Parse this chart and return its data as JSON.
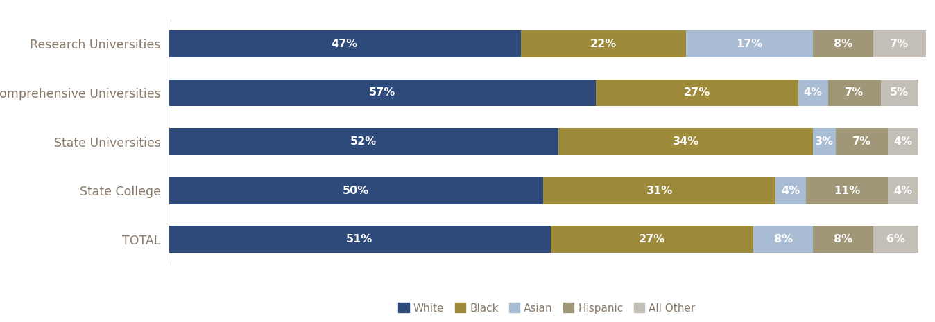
{
  "categories": [
    "Research Universities",
    "Comprehensive Universities",
    "State Universities",
    "State College",
    "TOTAL"
  ],
  "series": {
    "White": [
      47,
      57,
      52,
      50,
      51
    ],
    "Black": [
      22,
      27,
      34,
      31,
      27
    ],
    "Asian": [
      17,
      4,
      3,
      4,
      8
    ],
    "Hispanic": [
      8,
      7,
      7,
      11,
      8
    ],
    "All Other": [
      7,
      5,
      4,
      4,
      6
    ]
  },
  "colors": {
    "White": "#2d4a7a",
    "Black": "#9e8a3b",
    "Asian": "#a8bdd4",
    "Hispanic": "#a09678",
    "All Other": "#c4bfb6"
  },
  "bar_height": 0.55,
  "figsize": [
    13.48,
    4.65
  ],
  "dpi": 100,
  "background_color": "#ffffff",
  "label_fontsize": 11.5,
  "ytick_fontsize": 12.5,
  "legend_fontsize": 11,
  "category_color": "#8a7a6a",
  "min_label_pct": 3
}
